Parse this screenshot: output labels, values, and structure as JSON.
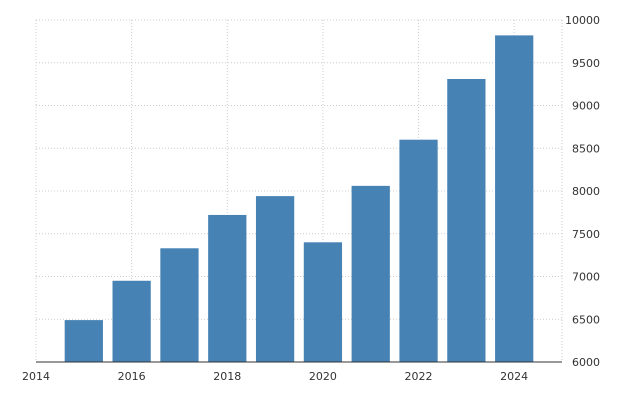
{
  "chart_data": {
    "type": "bar",
    "x": [
      2015,
      2016,
      2017,
      2018,
      2019,
      2020,
      2021,
      2022,
      2023,
      2024
    ],
    "values": [
      6490,
      6950,
      7330,
      7720,
      7940,
      7400,
      8060,
      8600,
      9310,
      9820
    ],
    "xlim": [
      2014,
      2025
    ],
    "ylim": [
      6000,
      10000
    ],
    "x_ticks": [
      "2014",
      "2016",
      "2018",
      "2020",
      "2022",
      "2024"
    ],
    "y_ticks": [
      "6000",
      "6500",
      "7000",
      "7500",
      "8000",
      "8500",
      "9000",
      "9500",
      "10000"
    ],
    "y_axis_side": "right",
    "grid": true,
    "colors": {
      "bar": "#4682b4",
      "grid": "#cccccc",
      "axis": "#333333"
    }
  }
}
